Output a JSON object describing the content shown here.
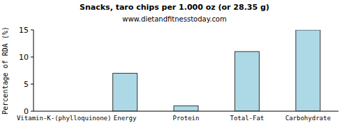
{
  "chart_data": {
    "type": "bar",
    "title": "Snacks, taro chips per 1.000 oz (or 28.35 g)",
    "subtitle": "www.dietandfitnesstoday.com",
    "y_label": "Percentage of RDA (%)",
    "categories": [
      "Vitamin-K-(phylloquinone)",
      "Energy",
      "Protein",
      "Total-Fat",
      "Carbohydrate"
    ],
    "values": [
      0,
      7,
      1,
      11,
      15
    ],
    "color": "#add8e6",
    "ylim": [
      0,
      15
    ],
    "yticks": [
      0,
      5,
      10,
      15
    ],
    "grid": false
  }
}
